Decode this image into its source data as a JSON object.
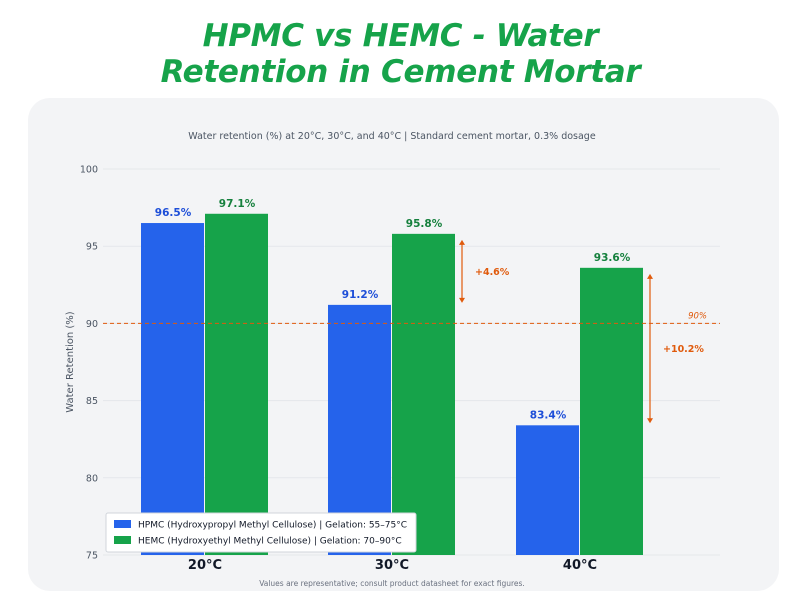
{
  "header": {
    "title_line1": "HPMC vs HEMC - Water",
    "title_line2": "Retention in Cement Mortar"
  },
  "colors": {
    "hpmc": "#2563eb",
    "hemc": "#16a34a",
    "annotation": "#e05a0c"
  },
  "chart_data": {
    "type": "bar",
    "subtitle": "Water retention (%) at 20°C, 30°C, and 40°C  |  Standard cement mortar, 0.3% dosage",
    "categories": [
      "20°C",
      "30°C",
      "40°C"
    ],
    "series": [
      {
        "name": "HPMC  (Hydroxypropyl Methyl Cellulose)  |  Gelation: 55–75°C",
        "values": [
          96.5,
          91.2,
          83.4
        ],
        "labels": [
          "96.5%",
          "91.2%",
          "83.4%"
        ]
      },
      {
        "name": "HEMC  (Hydroxyethyl Methyl Cellulose)   |  Gelation: 70–90°C",
        "values": [
          97.1,
          95.8,
          93.6
        ],
        "labels": [
          "97.1%",
          "95.8%",
          "93.6%"
        ]
      }
    ],
    "ylabel": "Water Retention (%)",
    "xlabel": "",
    "ylim": [
      75,
      100
    ],
    "yticks": [
      75,
      80,
      85,
      90,
      95,
      100
    ],
    "grid": true,
    "legend_position": "bottom-left",
    "reference_line": {
      "value": 90,
      "label": "90%"
    },
    "annotations": [
      {
        "category": "30°C",
        "label": "+4.6%"
      },
      {
        "category": "40°C",
        "label": "+10.2%"
      }
    ],
    "footnote": "Values are representative; consult product datasheet for exact figures."
  }
}
